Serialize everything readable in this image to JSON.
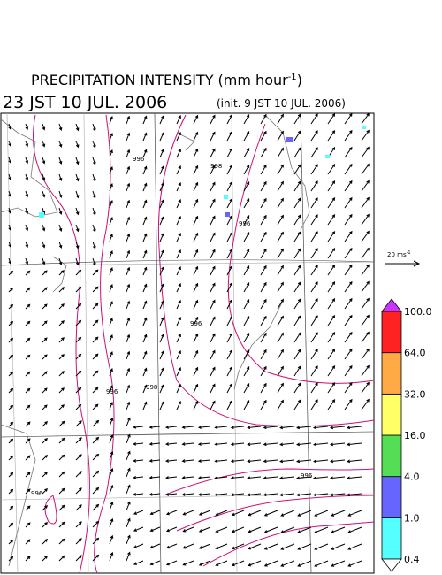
{
  "header": {
    "title": "PRECIPITATION INTENSITY (mm hour",
    "title_superscript": "-1",
    "title_close": ")",
    "valid_time": "23 JST 10 JUL. 2006",
    "init_time": "(init. 9 JST 10 JUL. 2006)"
  },
  "wind_scale": {
    "label": "20 ms",
    "superscript": "-1"
  },
  "colorbar": {
    "ticks": [
      {
        "value": 0.4,
        "label": "0.4"
      },
      {
        "value": 1,
        "label": "1.0"
      },
      {
        "value": 4,
        "label": "4.0"
      },
      {
        "value": 16,
        "label": "16.0"
      },
      {
        "value": 32,
        "label": "32.0"
      },
      {
        "value": 64,
        "label": "64.0"
      },
      {
        "value": 100,
        "label": "100.0"
      }
    ],
    "colors": [
      "#55ffff",
      "#6666ff",
      "#55dd55",
      "#ffff66",
      "#ffaa44",
      "#ff2222"
    ],
    "under_color": "#ffffff",
    "over_color": "#cc33ff"
  },
  "contour_labels": [
    996,
    998,
    998,
    996,
    996,
    996,
    996,
    996
  ]
}
